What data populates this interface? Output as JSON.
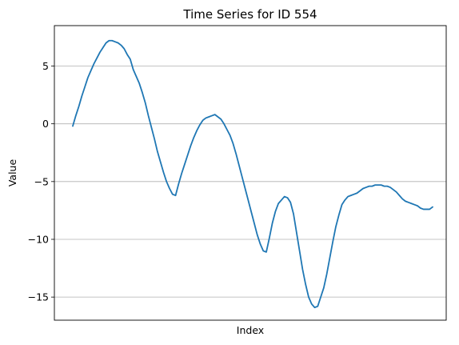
{
  "chart_data": {
    "type": "line",
    "title": "Time Series for ID 554",
    "xlabel": "Index",
    "ylabel": "Value",
    "ylim": [
      -17,
      8.5
    ],
    "grid": "horizontal",
    "yticks": [
      {
        "value": 5,
        "label": "5"
      },
      {
        "value": 0,
        "label": "0"
      },
      {
        "value": -5,
        "label": "−5"
      },
      {
        "value": -10,
        "label": "−10"
      },
      {
        "value": -15,
        "label": "−15"
      }
    ],
    "series": [
      {
        "color": "#1f77b4",
        "values": [
          -0.2,
          0.7,
          1.5,
          2.4,
          3.2,
          4.0,
          4.6,
          5.2,
          5.7,
          6.2,
          6.6,
          7.0,
          7.2,
          7.2,
          7.1,
          7.0,
          6.8,
          6.5,
          6.0,
          5.6,
          4.7,
          4.1,
          3.5,
          2.7,
          1.8,
          0.7,
          -0.3,
          -1.3,
          -2.4,
          -3.3,
          -4.2,
          -5.0,
          -5.6,
          -6.1,
          -6.2,
          -5.2,
          -4.3,
          -3.5,
          -2.7,
          -1.9,
          -1.2,
          -0.6,
          -0.1,
          0.3,
          0.5,
          0.6,
          0.7,
          0.8,
          0.6,
          0.4,
          0.0,
          -0.5,
          -1.0,
          -1.7,
          -2.6,
          -3.6,
          -4.6,
          -5.6,
          -6.6,
          -7.6,
          -8.6,
          -9.6,
          -10.4,
          -11.0,
          -11.1,
          -9.9,
          -8.6,
          -7.6,
          -6.9,
          -6.6,
          -6.3,
          -6.4,
          -6.8,
          -7.8,
          -9.4,
          -11.0,
          -12.6,
          -13.9,
          -15.0,
          -15.6,
          -15.9,
          -15.8,
          -15.0,
          -14.2,
          -13.0,
          -11.6,
          -10.2,
          -8.9,
          -7.9,
          -7.0,
          -6.6,
          -6.3,
          -6.2,
          -6.1,
          -6.0,
          -5.8,
          -5.6,
          -5.5,
          -5.4,
          -5.4,
          -5.3,
          -5.3,
          -5.3,
          -5.4,
          -5.4,
          -5.5,
          -5.7,
          -5.9,
          -6.2,
          -6.5,
          -6.7,
          -6.8,
          -6.9,
          -7.0,
          -7.1,
          -7.3,
          -7.4,
          -7.4,
          -7.4,
          -7.2
        ]
      }
    ]
  }
}
